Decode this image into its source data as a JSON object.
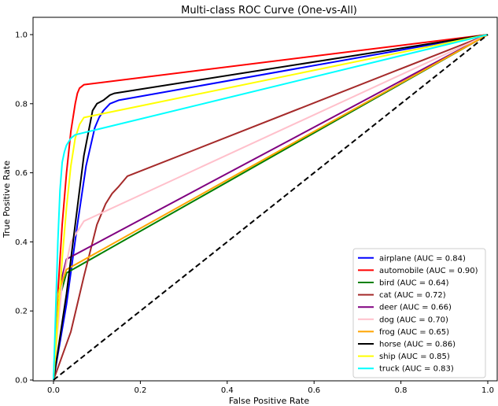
{
  "chart_data": {
    "type": "line",
    "title": "Multi-class ROC Curve (One-vs-All)",
    "xlabel": "False Positive Rate",
    "ylabel": "True Positive Rate",
    "xlim": [
      0,
      1
    ],
    "ylim": [
      0,
      1
    ],
    "xticks": [
      "0.0",
      "0.2",
      "0.4",
      "0.6",
      "0.8",
      "1.0"
    ],
    "yticks": [
      "0.0",
      "0.2",
      "0.4",
      "0.6",
      "0.8",
      "1.0"
    ],
    "grid": false,
    "legend_position": "lower-right",
    "diagonal": {
      "x": [
        0,
        1
      ],
      "y": [
        0,
        1
      ],
      "color": "#000000",
      "style": "dashed"
    },
    "series": [
      {
        "name": "airplane (AUC = 0.84)",
        "color": "#0000ff",
        "x": [
          0,
          0.03,
          0.055,
          0.075,
          0.095,
          0.105,
          0.115,
          0.13,
          0.15,
          1
        ],
        "y": [
          0,
          0.22,
          0.45,
          0.62,
          0.73,
          0.76,
          0.78,
          0.8,
          0.81,
          1
        ]
      },
      {
        "name": "automobile (AUC = 0.90)",
        "color": "#ff0000",
        "x": [
          0,
          0.01,
          0.02,
          0.03,
          0.04,
          0.05,
          0.055,
          0.06,
          0.07,
          1
        ],
        "y": [
          0,
          0.25,
          0.45,
          0.6,
          0.72,
          0.8,
          0.83,
          0.845,
          0.855,
          1
        ]
      },
      {
        "name": "bird (AUC = 0.64)",
        "color": "#008000",
        "x": [
          0,
          0.01,
          0.03,
          1
        ],
        "y": [
          0,
          0.22,
          0.31,
          1
        ]
      },
      {
        "name": "cat (AUC = 0.72)",
        "color": "#a52a2a",
        "x": [
          0,
          0.04,
          0.07,
          0.1,
          0.12,
          0.135,
          0.15,
          0.17,
          1
        ],
        "y": [
          0,
          0.14,
          0.3,
          0.45,
          0.51,
          0.54,
          0.56,
          0.59,
          1
        ]
      },
      {
        "name": "deer (AUC = 0.66)",
        "color": "#800080",
        "x": [
          0,
          0.01,
          0.02,
          0.03,
          1
        ],
        "y": [
          0,
          0.2,
          0.3,
          0.35,
          1
        ]
      },
      {
        "name": "dog (AUC = 0.70)",
        "color": "#ffc0cb",
        "x": [
          0,
          0.01,
          0.02,
          0.04,
          0.07,
          1
        ],
        "y": [
          0,
          0.15,
          0.28,
          0.4,
          0.46,
          1
        ]
      },
      {
        "name": "frog (AUC = 0.65)",
        "color": "#ffa500",
        "x": [
          0,
          0.005,
          0.01,
          0.03,
          1
        ],
        "y": [
          0,
          0.15,
          0.25,
          0.32,
          1
        ]
      },
      {
        "name": "horse (AUC = 0.86)",
        "color": "#000000",
        "x": [
          0,
          0.03,
          0.05,
          0.07,
          0.09,
          0.1,
          0.115,
          0.13,
          0.14,
          1
        ],
        "y": [
          0,
          0.25,
          0.45,
          0.65,
          0.78,
          0.8,
          0.81,
          0.825,
          0.83,
          1
        ]
      },
      {
        "name": "ship (AUC = 0.85)",
        "color": "#ffff00",
        "x": [
          0,
          0.01,
          0.02,
          0.03,
          0.04,
          0.05,
          0.06,
          0.07,
          1
        ],
        "y": [
          0,
          0.18,
          0.35,
          0.5,
          0.62,
          0.7,
          0.74,
          0.76,
          1
        ]
      },
      {
        "name": "truck (AUC = 0.83)",
        "color": "#00ffff",
        "x": [
          0,
          0.005,
          0.01,
          0.015,
          0.02,
          0.025,
          0.03,
          0.04,
          0.05,
          1
        ],
        "y": [
          0,
          0.2,
          0.4,
          0.55,
          0.63,
          0.66,
          0.68,
          0.7,
          0.71,
          1
        ]
      }
    ]
  }
}
